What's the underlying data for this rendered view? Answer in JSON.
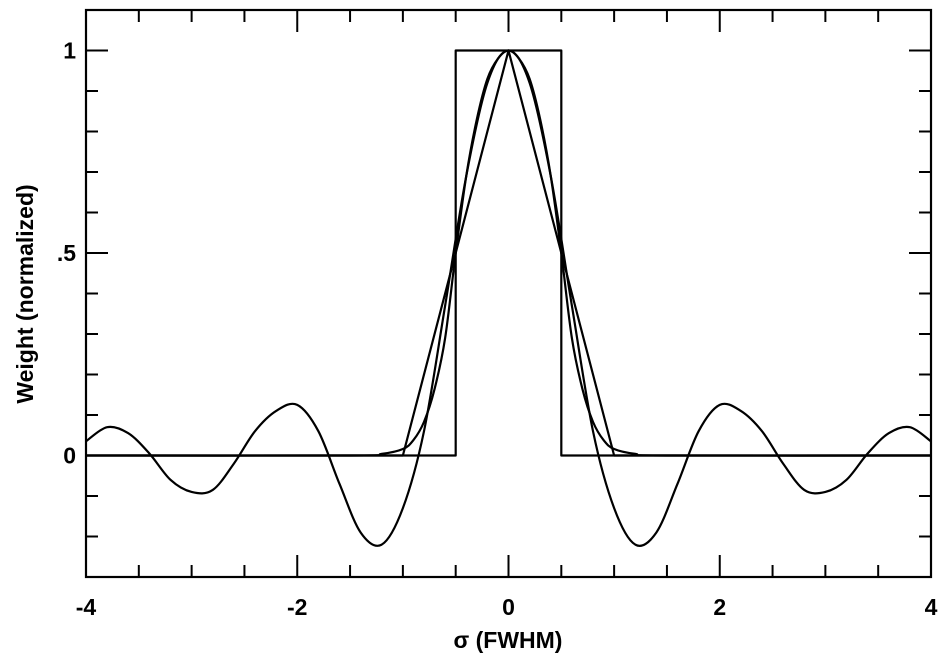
{
  "chart_data": {
    "type": "line",
    "xlabel": "σ (FWHM)",
    "ylabel": "Weight (normalized)",
    "xlim": [
      -4,
      4
    ],
    "ylim": [
      -0.3,
      1.1
    ],
    "grid": false,
    "x_ticks": [
      {
        "value": -4,
        "label": "-4"
      },
      {
        "value": -2,
        "label": "-2"
      },
      {
        "value": 0,
        "label": "0"
      },
      {
        "value": 2,
        "label": "2"
      },
      {
        "value": 4,
        "label": "4"
      }
    ],
    "y_ticks": [
      {
        "value": 0,
        "label": "0"
      },
      {
        "value": 0.5,
        "label": ".5"
      },
      {
        "value": 1,
        "label": "1"
      }
    ],
    "series": [
      {
        "x": [
          -4,
          -3.8,
          -3.6,
          -3.4,
          -3.2,
          -3.0,
          -2.8,
          -2.6,
          -2.4,
          -2.2,
          -2.0,
          -1.8,
          -1.6,
          -1.4,
          -1.2,
          -1.0,
          -0.8,
          -0.6,
          -0.4,
          -0.2,
          0,
          0.2,
          0.4,
          0.6,
          0.8,
          1.0,
          1.2,
          1.4,
          1.6,
          1.8,
          2.0,
          2.2,
          2.4,
          2.6,
          2.8,
          3.0,
          3.2,
          3.4,
          3.6,
          3.8,
          4
        ],
        "y": [
          0.035,
          0.07,
          0.055,
          0.005,
          -0.06,
          -0.09,
          -0.085,
          -0.02,
          0.06,
          0.11,
          0.125,
          0.06,
          -0.07,
          -0.19,
          -0.22,
          -0.13,
          0.06,
          0.37,
          0.69,
          0.92,
          1.0,
          0.92,
          0.69,
          0.37,
          0.06,
          -0.13,
          -0.22,
          -0.19,
          -0.07,
          0.06,
          0.125,
          0.11,
          0.06,
          -0.02,
          -0.085,
          -0.09,
          -0.06,
          0.005,
          0.055,
          0.07,
          0.035
        ]
      },
      {
        "x": [
          -4,
          -1.0,
          0,
          1.0,
          4
        ],
        "y": [
          0,
          0,
          1,
          0,
          0
        ]
      },
      {
        "x": [
          -4,
          -1.5,
          -1.2,
          -1.0,
          -0.9,
          -0.8,
          -0.7,
          -0.6,
          -0.5,
          -0.4,
          -0.3,
          -0.2,
          -0.1,
          0,
          0.1,
          0.2,
          0.3,
          0.4,
          0.5,
          0.6,
          0.7,
          0.8,
          0.9,
          1.0,
          1.2,
          1.5,
          4
        ],
        "y": [
          0,
          0,
          0.004,
          0.016,
          0.038,
          0.083,
          0.164,
          0.29,
          0.5,
          0.69,
          0.83,
          0.93,
          0.98,
          1.0,
          0.98,
          0.93,
          0.83,
          0.69,
          0.5,
          0.29,
          0.164,
          0.083,
          0.038,
          0.016,
          0.004,
          0,
          0
        ]
      },
      {
        "x": [
          -4,
          -0.5,
          -0.5,
          0.5,
          0.5,
          4
        ],
        "y": [
          0,
          0,
          1,
          1,
          0,
          0
        ]
      }
    ]
  }
}
